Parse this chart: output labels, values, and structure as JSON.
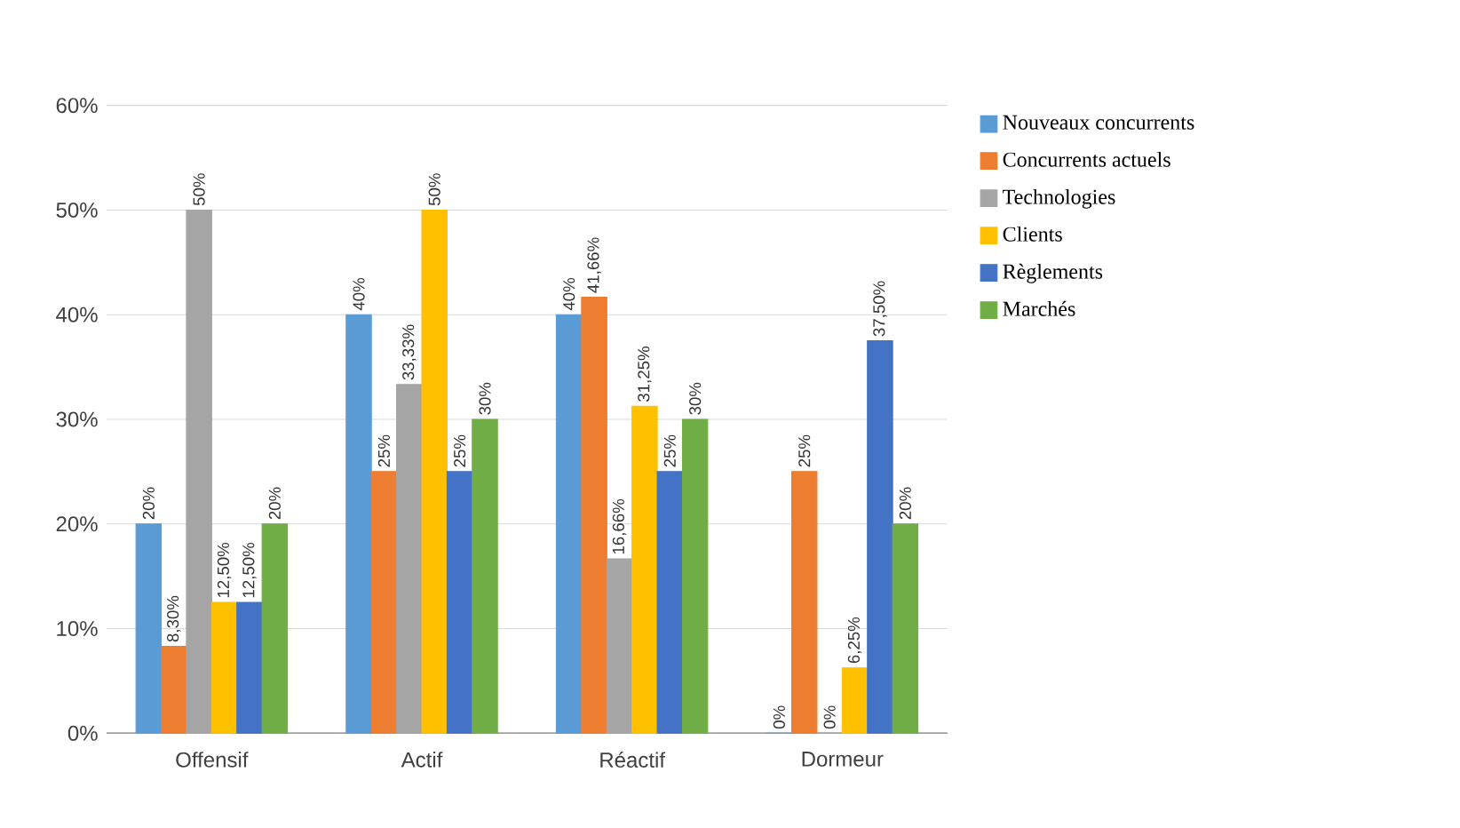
{
  "chart_data": {
    "type": "bar",
    "categories": [
      "Offensif",
      "Actif",
      "Réactif",
      "Dormeur"
    ],
    "series": [
      {
        "name": "Nouveaux concurrents",
        "color": "#5b9bd5",
        "values": [
          20,
          40,
          40,
          0
        ],
        "value_labels": [
          "20%",
          "40%",
          "40%",
          "0%"
        ]
      },
      {
        "name": "Concurrents actuels",
        "color": "#ed7d31",
        "values": [
          8.3,
          25,
          41.66,
          25
        ],
        "value_labels": [
          "8,30%",
          "25%",
          "41,66%",
          "25%"
        ]
      },
      {
        "name": "Technologies",
        "color": "#a5a5a5",
        "values": [
          50,
          33.33,
          16.66,
          0
        ],
        "value_labels": [
          "50%",
          "33,33%",
          "16,66%",
          "0%"
        ]
      },
      {
        "name": "Clients",
        "color": "#ffc000",
        "values": [
          12.5,
          50,
          31.25,
          6.25
        ],
        "value_labels": [
          "12,50%",
          "50%",
          "31,25%",
          "6,25%"
        ]
      },
      {
        "name": "Règlements",
        "color": "#4472c4",
        "values": [
          12.5,
          25,
          25,
          37.5
        ],
        "value_labels": [
          "12,50%",
          "25%",
          "25%",
          "37,50%"
        ]
      },
      {
        "name": "Marchés",
        "color": "#70ad47",
        "values": [
          20,
          30,
          30,
          20
        ],
        "value_labels": [
          "20%",
          "30%",
          "30%",
          "20%"
        ]
      }
    ],
    "ylim": [
      0,
      60
    ],
    "yticks": [
      {
        "value": 0,
        "label": "0%"
      },
      {
        "value": 10,
        "label": "10%"
      },
      {
        "value": 20,
        "label": "20%"
      },
      {
        "value": 30,
        "label": "30%"
      },
      {
        "value": 40,
        "label": "40%"
      },
      {
        "value": 50,
        "label": "50%"
      },
      {
        "value": 60,
        "label": "60%"
      }
    ],
    "grid": "y",
    "legend": "right"
  }
}
